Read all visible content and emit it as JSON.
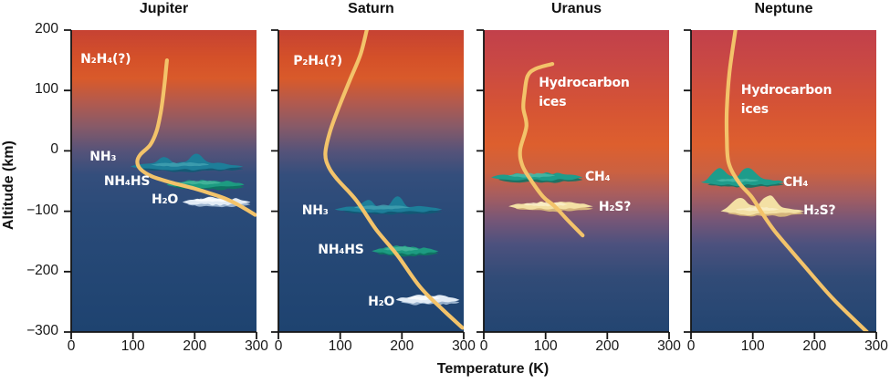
{
  "shared": {
    "xlabel": "Temperature (K)",
    "ylabel": "Altitude (km)",
    "curve_color": "#f3c36a",
    "axis_color": "#151515",
    "annotation_color": "#ffffff"
  },
  "gradients": {
    "gas": [
      [
        0,
        "#c64233"
      ],
      [
        0.09,
        "#d45029"
      ],
      [
        0.16,
        "#d95a2a"
      ],
      [
        0.24,
        "#b25a4e"
      ],
      [
        0.32,
        "#875a68"
      ],
      [
        0.4,
        "#565379"
      ],
      [
        0.48,
        "#344e7c"
      ],
      [
        0.62,
        "#294a78"
      ],
      [
        1,
        "#1e4370"
      ]
    ],
    "ice": [
      [
        0,
        "#c2404b"
      ],
      [
        0.12,
        "#ca4943"
      ],
      [
        0.26,
        "#d65434"
      ],
      [
        0.38,
        "#dd5f2e"
      ],
      [
        0.47,
        "#cb6141"
      ],
      [
        0.55,
        "#a55d60"
      ],
      [
        0.63,
        "#765677"
      ],
      [
        0.71,
        "#4c517e"
      ],
      [
        0.82,
        "#314b77"
      ],
      [
        1,
        "#234571"
      ]
    ]
  },
  "cloud_colors": {
    "nh3": {
      "fill": "#1d7e99",
      "highlight": "#45a6b4",
      "shadow": "#0f5a74"
    },
    "nh4hs": {
      "fill": "#1d9b81",
      "highlight": "#4cbaa0",
      "shadow": "#0d7860"
    },
    "h2o": {
      "fill": "#e2ebf5",
      "highlight": "#ffffff",
      "shadow": "#a5bdd6"
    },
    "ch4": {
      "fill": "#1e9c8b",
      "highlight": "#4fbcaa",
      "shadow": "#0e7365"
    },
    "h2s": {
      "fill": "#f3e0a4",
      "highlight": "#fbf1cd",
      "shadow": "#ddbe7c"
    }
  },
  "chart_data": [
    {
      "type": "line",
      "title": "Jupiter",
      "background": "gas",
      "xlabel": "Temperature (K)",
      "ylabel": "Altitude (km)",
      "xlim": [
        0,
        300
      ],
      "ylim": [
        -300,
        200
      ],
      "x_ticks": [
        0,
        100,
        200,
        300
      ],
      "y_ticks": [
        200,
        100,
        0,
        -100,
        -200,
        -300
      ],
      "show_y_tick_labels": true,
      "series": [
        {
          "name": "temperature profile",
          "points_T_alt": [
            [
              155,
              150
            ],
            [
              152,
              120
            ],
            [
              148,
              84
            ],
            [
              144,
              58
            ],
            [
              138,
              32
            ],
            [
              128,
              10
            ],
            [
              112,
              -6
            ],
            [
              107,
              -18
            ],
            [
              112,
              -30
            ],
            [
              130,
              -42
            ],
            [
              160,
              -52
            ],
            [
              198,
              -62
            ],
            [
              230,
              -72
            ],
            [
              252,
              -80
            ],
            [
              275,
              -92
            ],
            [
              298,
              -106
            ]
          ]
        }
      ],
      "clouds": [
        {
          "label": "NH₃",
          "palette": "nh3",
          "style": "peaks",
          "t_range": [
            96,
            278
          ],
          "altitude": -26,
          "label_t": 30,
          "label_alt": -12
        },
        {
          "label": "NH₄HS",
          "palette": "nh4hs",
          "style": "flat",
          "t_range": [
            154,
            280
          ],
          "altitude": -56,
          "label_t": 53,
          "label_alt": -53
        },
        {
          "label": "H₂O",
          "palette": "h2o",
          "style": "flat",
          "t_range": [
            180,
            290
          ],
          "altitude": -85,
          "label_t": 130,
          "label_alt": -83
        }
      ],
      "annotations": [
        {
          "text": "N₂H₄(?)",
          "t": 15,
          "alt": 150,
          "anchor": "center"
        }
      ]
    },
    {
      "type": "line",
      "title": "Saturn",
      "background": "gas",
      "xlabel": "Temperature (K)",
      "ylabel": "Altitude (km)",
      "xlim": [
        0,
        300
      ],
      "ylim": [
        -300,
        200
      ],
      "x_ticks": [
        0,
        100,
        200,
        300
      ],
      "y_ticks": [
        200,
        100,
        0,
        -100,
        -200,
        -300
      ],
      "show_y_tick_labels": false,
      "series": [
        {
          "name": "temperature profile",
          "points_T_alt": [
            [
              143,
              200
            ],
            [
              133,
              160
            ],
            [
              116,
              118
            ],
            [
              97,
              70
            ],
            [
              83,
              30
            ],
            [
              76,
              -5
            ],
            [
              82,
              -28
            ],
            [
              96,
              -48
            ],
            [
              126,
              -82
            ],
            [
              158,
              -130
            ],
            [
              192,
              -172
            ],
            [
              229,
              -225
            ],
            [
              265,
              -262
            ],
            [
              298,
              -293
            ]
          ]
        }
      ],
      "clouds": [
        {
          "label": "NH₃",
          "palette": "nh3",
          "style": "peaks",
          "t_range": [
            91,
            265
          ],
          "altitude": -97,
          "label_t": 38,
          "label_alt": -101
        },
        {
          "label": "NH₄HS",
          "palette": "nh4hs",
          "style": "flat",
          "t_range": [
            151,
            259
          ],
          "altitude": -166,
          "label_t": 64,
          "label_alt": -166
        },
        {
          "label": "H₂O",
          "palette": "h2o",
          "style": "flat",
          "t_range": [
            190,
            293
          ],
          "altitude": -247,
          "label_t": 145,
          "label_alt": -251
        }
      ],
      "annotations": [
        {
          "text": "P₂H₄(?)",
          "t": 24,
          "alt": 147,
          "anchor": "center"
        }
      ]
    },
    {
      "type": "line",
      "title": "Uranus",
      "background": "ice",
      "xlabel": "Temperature (K)",
      "ylabel": "Altitude (km)",
      "xlim": [
        0,
        300
      ],
      "ylim": [
        -300,
        200
      ],
      "x_ticks": [
        0,
        100,
        200,
        300
      ],
      "y_ticks": [
        200,
        100,
        0,
        -100,
        -200,
        -300
      ],
      "show_y_tick_labels": false,
      "series": [
        {
          "name": "temperature profile",
          "points_T_alt": [
            [
              111,
              144
            ],
            [
              84,
              136
            ],
            [
              71,
              124
            ],
            [
              66,
              96
            ],
            [
              64,
              71
            ],
            [
              69,
              41
            ],
            [
              59,
              2
            ],
            [
              62,
              -23
            ],
            [
              74,
              -45
            ],
            [
              96,
              -76
            ],
            [
              114,
              -91
            ],
            [
              137,
              -116
            ],
            [
              160,
              -140
            ]
          ]
        }
      ],
      "clouds": [
        {
          "label": "CH₄",
          "palette": "ch4",
          "style": "flat",
          "t_range": [
            12,
            160
          ],
          "altitude": -44,
          "label_t": 164,
          "label_alt": -45
        },
        {
          "label": "H₂S?",
          "palette": "h2s",
          "style": "flat",
          "t_range": [
            40,
            177
          ],
          "altitude": -92,
          "label_t": 186,
          "label_alt": -94
        }
      ],
      "annotations": [
        {
          "text": "Hydrocarbon\nices",
          "t": 89,
          "alt": 128,
          "anchor": "top"
        }
      ]
    },
    {
      "type": "line",
      "title": "Neptune",
      "background": "ice",
      "xlabel": "Temperature (K)",
      "ylabel": "Altitude (km)",
      "xlim": [
        0,
        300
      ],
      "ylim": [
        -300,
        200
      ],
      "x_ticks": [
        0,
        100,
        200,
        300
      ],
      "y_ticks": [
        200,
        100,
        0,
        -100,
        -200,
        -300
      ],
      "show_y_tick_labels": false,
      "series": [
        {
          "name": "temperature profile",
          "points_T_alt": [
            [
              72,
              200
            ],
            [
              62,
              128
            ],
            [
              58,
              68
            ],
            [
              58,
              23
            ],
            [
              61,
              -20
            ],
            [
              78,
              -53
            ],
            [
              98,
              -76
            ],
            [
              115,
              -103
            ],
            [
              134,
              -131
            ],
            [
              157,
              -159
            ],
            [
              182,
              -189
            ],
            [
              230,
              -245
            ],
            [
              285,
              -300
            ]
          ]
        }
      ],
      "clouds": [
        {
          "label": "CH₄",
          "palette": "ch4",
          "style": "mushroom",
          "t_range": [
            16,
            150
          ],
          "altitude": -52,
          "label_t": 149,
          "label_alt": -54
        },
        {
          "label": "H₂S?",
          "palette": "h2s",
          "style": "mushroom",
          "t_range": [
            48,
            183
          ],
          "altitude": -100,
          "label_t": 182,
          "label_alt": -101
        }
      ],
      "annotations": [
        {
          "text": "Hydrocarbon\nices",
          "t": 81,
          "alt": 115,
          "anchor": "top"
        }
      ]
    }
  ]
}
